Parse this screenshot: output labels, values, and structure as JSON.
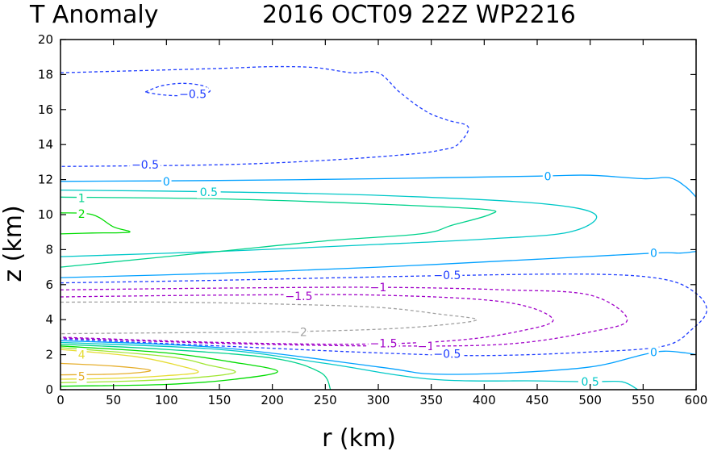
{
  "chart_data": {
    "type": "contour",
    "title_left": "T Anomaly",
    "title_right": "2016 OCT09 22Z   WP2216",
    "xlabel": "r (km)",
    "ylabel": "z (km)",
    "xlim": [
      0,
      600
    ],
    "ylim": [
      0,
      20
    ],
    "x_ticks": [
      0,
      50,
      100,
      150,
      200,
      250,
      300,
      350,
      400,
      450,
      500,
      550,
      600
    ],
    "y_ticks": [
      0,
      2,
      4,
      6,
      8,
      10,
      12,
      14,
      16,
      18,
      20
    ],
    "colors": {
      "-2": "#a0a0a0",
      "-1.5": "#a000c8",
      "-1": "#a000c8",
      "-0.5": "#1e3cff",
      "0": "#00a0ff",
      "0.5": "#00c8c8",
      "1": "#00d28c",
      "2": "#00dc00",
      "3": "#a0e632",
      "4": "#e6dc32",
      "5": "#e6af2d"
    },
    "contours": [
      {
        "level": "-0.5",
        "dashed": true,
        "points": [
          [
            0,
            18.1
          ],
          [
            150,
            18.35
          ],
          [
            200,
            18.45
          ],
          [
            240,
            18.4
          ],
          [
            275,
            18.1
          ],
          [
            300,
            18.1
          ],
          [
            320,
            17.0
          ],
          [
            345,
            15.9
          ],
          [
            365,
            15.4
          ],
          [
            385,
            15.0
          ],
          [
            375,
            14.0
          ],
          [
            360,
            13.7
          ],
          [
            330,
            13.45
          ],
          [
            250,
            13.1
          ],
          [
            150,
            12.85
          ],
          [
            0,
            12.75
          ]
        ]
      },
      {
        "level": "-0.5",
        "dashed": true,
        "points": [
          [
            80,
            17.0
          ],
          [
            95,
            17.35
          ],
          [
            115,
            17.5
          ],
          [
            135,
            17.35
          ],
          [
            140,
            17.0
          ],
          [
            115,
            16.8
          ],
          [
            95,
            16.85
          ],
          [
            80,
            17.0
          ]
        ]
      },
      {
        "level": "0",
        "dashed": false,
        "points": [
          [
            0,
            11.9
          ],
          [
            150,
            11.95
          ],
          [
            300,
            12.05
          ],
          [
            450,
            12.2
          ],
          [
            500,
            12.25
          ],
          [
            550,
            12.05
          ],
          [
            575,
            12.1
          ],
          [
            590,
            11.6
          ],
          [
            600,
            11.0
          ]
        ]
      },
      {
        "level": "0.5",
        "dashed": false,
        "points": [
          [
            0,
            11.4
          ],
          [
            150,
            11.3
          ],
          [
            300,
            11.1
          ],
          [
            450,
            10.65
          ],
          [
            505,
            10.0
          ],
          [
            480,
            9.0
          ],
          [
            400,
            8.6
          ],
          [
            300,
            8.3
          ],
          [
            150,
            7.9
          ],
          [
            0,
            7.6
          ]
        ]
      },
      {
        "level": "1",
        "dashed": false,
        "points": [
          [
            0,
            11.0
          ],
          [
            150,
            10.9
          ],
          [
            300,
            10.6
          ],
          [
            400,
            10.3
          ],
          [
            405,
            10.0
          ],
          [
            370,
            9.4
          ],
          [
            340,
            8.9
          ],
          [
            250,
            8.5
          ],
          [
            150,
            7.9
          ],
          [
            0,
            7.0
          ]
        ]
      },
      {
        "level": "2",
        "dashed": false,
        "points": [
          [
            0,
            10.1
          ],
          [
            30,
            10.0
          ],
          [
            50,
            9.3
          ],
          [
            65,
            9.0
          ],
          [
            30,
            8.95
          ],
          [
            0,
            8.9
          ]
        ]
      },
      {
        "level": "0",
        "dashed": false,
        "points": [
          [
            0,
            6.4
          ],
          [
            150,
            6.65
          ],
          [
            300,
            7.0
          ],
          [
            450,
            7.45
          ],
          [
            560,
            7.8
          ],
          [
            585,
            7.8
          ],
          [
            600,
            7.9
          ]
        ]
      },
      {
        "level": "-0.5",
        "dashed": true,
        "points": [
          [
            0,
            6.1
          ],
          [
            150,
            6.25
          ],
          [
            350,
            6.5
          ],
          [
            500,
            6.6
          ],
          [
            570,
            6.3
          ],
          [
            600,
            5.5
          ],
          [
            610,
            4.5
          ],
          [
            597,
            3.5
          ],
          [
            570,
            2.5
          ],
          [
            500,
            2.15
          ],
          [
            400,
            1.95
          ],
          [
            300,
            2.1
          ],
          [
            150,
            2.5
          ],
          [
            0,
            2.9
          ]
        ]
      },
      {
        "level": "-1",
        "dashed": true,
        "points": [
          [
            0,
            5.7
          ],
          [
            150,
            5.8
          ],
          [
            300,
            5.85
          ],
          [
            420,
            5.7
          ],
          [
            500,
            5.4
          ],
          [
            535,
            4.0
          ],
          [
            500,
            3.3
          ],
          [
            420,
            2.6
          ],
          [
            300,
            2.5
          ],
          [
            150,
            2.65
          ],
          [
            0,
            2.95
          ]
        ]
      },
      {
        "level": "-1.5",
        "dashed": true,
        "points": [
          [
            0,
            5.3
          ],
          [
            150,
            5.4
          ],
          [
            300,
            5.4
          ],
          [
            420,
            5.0
          ],
          [
            465,
            4.0
          ],
          [
            430,
            3.3
          ],
          [
            370,
            2.8
          ],
          [
            280,
            2.6
          ],
          [
            150,
            2.7
          ],
          [
            0,
            3.0
          ]
        ]
      },
      {
        "level": "-2",
        "dashed": true,
        "points": [
          [
            0,
            5.0
          ],
          [
            100,
            5.0
          ],
          [
            200,
            4.9
          ],
          [
            300,
            4.7
          ],
          [
            360,
            4.3
          ],
          [
            393,
            4.0
          ],
          [
            360,
            3.7
          ],
          [
            300,
            3.45
          ],
          [
            200,
            3.3
          ],
          [
            100,
            3.25
          ],
          [
            0,
            3.2
          ]
        ]
      },
      {
        "level": "0",
        "dashed": false,
        "points": [
          [
            0,
            2.8
          ],
          [
            150,
            2.4
          ],
          [
            300,
            1.3
          ],
          [
            350,
            0.9
          ],
          [
            420,
            0.95
          ],
          [
            500,
            1.3
          ],
          [
            550,
            2.0
          ],
          [
            570,
            2.2
          ],
          [
            590,
            2.1
          ],
          [
            600,
            2.0
          ]
        ]
      },
      {
        "level": "0.5",
        "dashed": false,
        "points": [
          [
            0,
            2.7
          ],
          [
            150,
            2.3
          ],
          [
            250,
            1.5
          ],
          [
            350,
            0.6
          ],
          [
            450,
            0.5
          ],
          [
            500,
            0.45
          ],
          [
            530,
            0.45
          ],
          [
            545,
            0.0
          ]
        ]
      },
      {
        "level": "1",
        "dashed": false,
        "points": [
          [
            0,
            2.6
          ],
          [
            100,
            2.3
          ],
          [
            200,
            1.8
          ],
          [
            245,
            1.0
          ],
          [
            255,
            0.0
          ]
        ]
      },
      {
        "level": "2",
        "dashed": false,
        "points": [
          [
            0,
            2.5
          ],
          [
            100,
            2.1
          ],
          [
            160,
            1.6
          ],
          [
            205,
            1.05
          ],
          [
            165,
            0.6
          ],
          [
            100,
            0.3
          ],
          [
            0,
            0.2
          ]
        ]
      },
      {
        "level": "3",
        "dashed": false,
        "points": [
          [
            0,
            2.4
          ],
          [
            100,
            1.9
          ],
          [
            140,
            1.4
          ],
          [
            165,
            1.0
          ],
          [
            130,
            0.7
          ],
          [
            70,
            0.5
          ],
          [
            0,
            0.4
          ]
        ]
      },
      {
        "level": "4",
        "dashed": false,
        "points": [
          [
            0,
            2.3
          ],
          [
            70,
            1.9
          ],
          [
            110,
            1.4
          ],
          [
            130,
            1.0
          ],
          [
            100,
            0.8
          ],
          [
            50,
            0.65
          ],
          [
            0,
            0.6
          ]
        ]
      },
      {
        "level": "5",
        "dashed": false,
        "points": [
          [
            0,
            1.5
          ],
          [
            50,
            1.35
          ],
          [
            85,
            1.1
          ],
          [
            55,
            0.9
          ],
          [
            0,
            0.85
          ]
        ]
      }
    ],
    "labels": [
      {
        "text": "-0.5",
        "x": 125,
        "y": 16.9,
        "level": "-0.5"
      },
      {
        "text": "-0.5",
        "x": 80,
        "y": 12.85,
        "level": "-0.5"
      },
      {
        "text": "0",
        "x": 100,
        "y": 11.9,
        "level": "0"
      },
      {
        "text": "0",
        "x": 460,
        "y": 12.2,
        "level": "0"
      },
      {
        "text": "0.5",
        "x": 140,
        "y": 11.3,
        "level": "0.5"
      },
      {
        "text": "1",
        "x": 20,
        "y": 10.95,
        "level": "1"
      },
      {
        "text": "2",
        "x": 20,
        "y": 10.05,
        "level": "2"
      },
      {
        "text": "0",
        "x": 560,
        "y": 7.8,
        "level": "0"
      },
      {
        "text": "-0.5",
        "x": 365,
        "y": 6.55,
        "level": "-0.5"
      },
      {
        "text": "-1",
        "x": 300,
        "y": 5.85,
        "level": "-1"
      },
      {
        "text": "-1.5",
        "x": 225,
        "y": 5.35,
        "level": "-1.5"
      },
      {
        "text": "-2",
        "x": 225,
        "y": 3.3,
        "level": "-2"
      },
      {
        "text": "-1.5",
        "x": 305,
        "y": 2.65,
        "level": "-1.5"
      },
      {
        "text": "-1",
        "x": 345,
        "y": 2.5,
        "level": "-1"
      },
      {
        "text": "-0.5",
        "x": 365,
        "y": 2.05,
        "level": "-0.5"
      },
      {
        "text": "0",
        "x": 560,
        "y": 2.15,
        "level": "0"
      },
      {
        "text": "0.5",
        "x": 500,
        "y": 0.45,
        "level": "0.5"
      },
      {
        "text": "4",
        "x": 20,
        "y": 2.0,
        "level": "4"
      },
      {
        "text": "5",
        "x": 20,
        "y": 0.75,
        "level": "5"
      }
    ]
  }
}
